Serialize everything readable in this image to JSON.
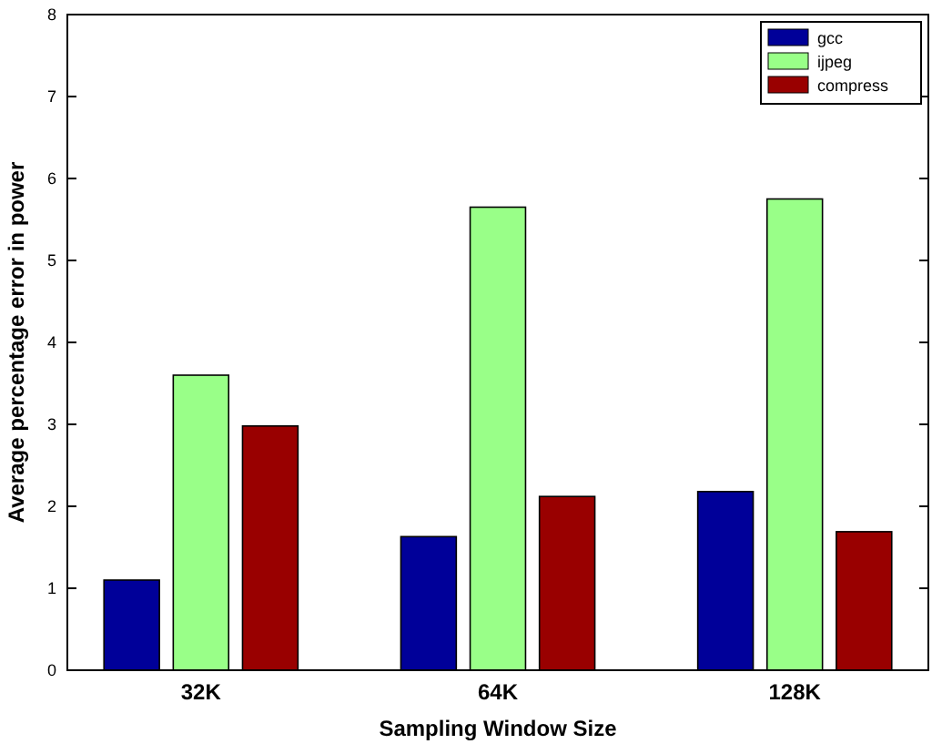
{
  "chart_data": {
    "type": "bar",
    "xlabel": "Sampling Window Size",
    "ylabel": "Average percentage error in power",
    "categories": [
      "32K",
      "64K",
      "128K"
    ],
    "series": [
      {
        "name": "gcc",
        "color": "#000099",
        "values": [
          1.1,
          1.63,
          2.18
        ]
      },
      {
        "name": "ijpeg",
        "color": "#99ff88",
        "values": [
          3.6,
          5.65,
          5.75
        ]
      },
      {
        "name": "compress",
        "color": "#990000",
        "values": [
          2.98,
          2.12,
          1.69
        ]
      }
    ],
    "ylim": [
      0,
      8
    ],
    "yticks": [
      0,
      1,
      2,
      3,
      4,
      5,
      6,
      7,
      8
    ],
    "legend": "top right",
    "grid": false
  }
}
